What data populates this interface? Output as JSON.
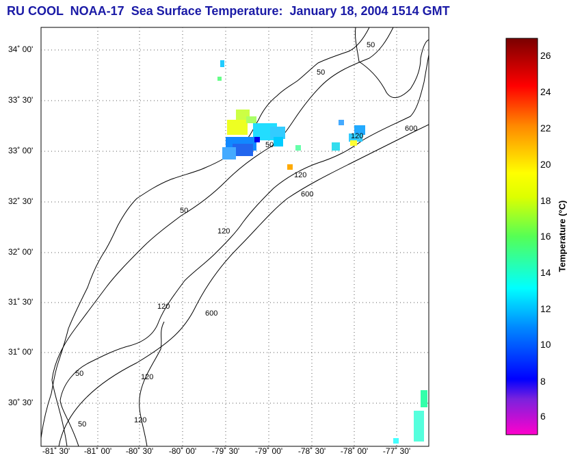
{
  "title": "RU COOL  NOAA-17  Sea Surface Temperature:  January 18, 2004 1514 GMT",
  "colorbar": {
    "label": "Temperature (°C)",
    "min": 5,
    "max": 27,
    "ticks": [
      "6",
      "8",
      "10",
      "12",
      "14",
      "16",
      "18",
      "20",
      "22",
      "24",
      "26"
    ]
  },
  "latitude_labels": [
    "34˚ 00'",
    "33˚ 30'",
    "33˚ 00'",
    "32˚ 30'",
    "32˚ 00'",
    "31˚ 30'",
    "31˚ 00'",
    "30˚ 30'"
  ],
  "longitude_labels": [
    "-81˚ 30'",
    "-81˚ 00'",
    "-80˚ 30'",
    "-80˚ 00'",
    "-79˚ 30'",
    "-79˚ 00'",
    "-78˚ 30'",
    "-78˚ 00'",
    "-77˚ 30'"
  ],
  "contour_labels": {
    "c50": "50",
    "c120": "120",
    "c600": "600"
  },
  "colors": {
    "title": "#1a1aa6",
    "contour": "#000000",
    "grid": "#555555"
  }
}
